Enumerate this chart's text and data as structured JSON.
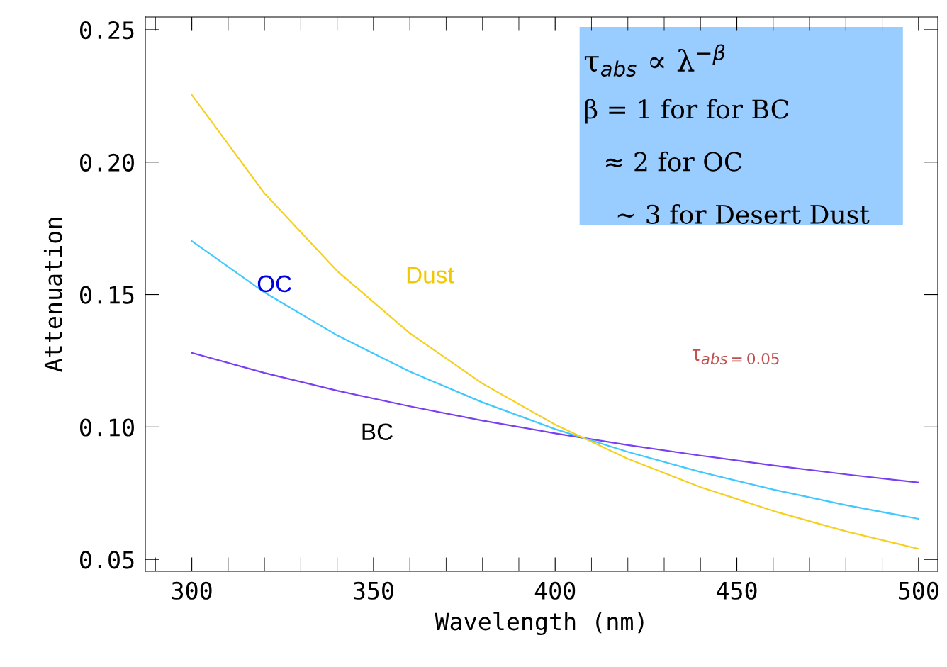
{
  "chart_data": {
    "type": "line",
    "xlabel": "Wavelength (nm)",
    "ylabel": "Attenuation",
    "x": [
      300,
      320,
      340,
      360,
      380,
      400,
      420,
      440,
      460,
      480,
      500
    ],
    "series": [
      {
        "color": "#7b3ff2",
        "values": [
          0.128,
          0.1204,
          0.1137,
          0.1078,
          0.1024,
          0.0976,
          0.0932,
          0.0892,
          0.0855,
          0.0821,
          0.079
        ]
      },
      {
        "color": "#40c8ff",
        "values": [
          0.1702,
          0.1508,
          0.1346,
          0.1209,
          0.1093,
          0.0992,
          0.0906,
          0.083,
          0.0764,
          0.0705,
          0.0653
        ]
      },
      {
        "color": "#f5d020",
        "values": [
          0.2254,
          0.1882,
          0.1589,
          0.1354,
          0.1164,
          0.1009,
          0.088,
          0.0773,
          0.0683,
          0.0606,
          0.054
        ]
      }
    ],
    "xlim": [
      287.2,
      505.3
    ],
    "ylim": [
      0.0455,
      0.2548
    ],
    "xticks": [
      300,
      350,
      400,
      450,
      500
    ],
    "yticks": [
      {
        "value": 0.05,
        "label": "0.05"
      },
      {
        "value": 0.1,
        "label": "0.10"
      },
      {
        "value": 0.15,
        "label": "0.15"
      },
      {
        "value": 0.2,
        "label": "0.20"
      },
      {
        "value": 0.25,
        "label": "0.25"
      }
    ],
    "grid": false,
    "legend": false,
    "marker": "none",
    "line_style": "solid",
    "annotations": [
      "τ$_{abs}$ ∝ λ$^{−β}$",
      "β = 1 for for BC",
      "≈ 2 for OC",
      "~ 3 for Desert Dust",
      "τ$_{abs=0.05}$",
      "BC",
      "OC",
      "Dust"
    ]
  }
}
